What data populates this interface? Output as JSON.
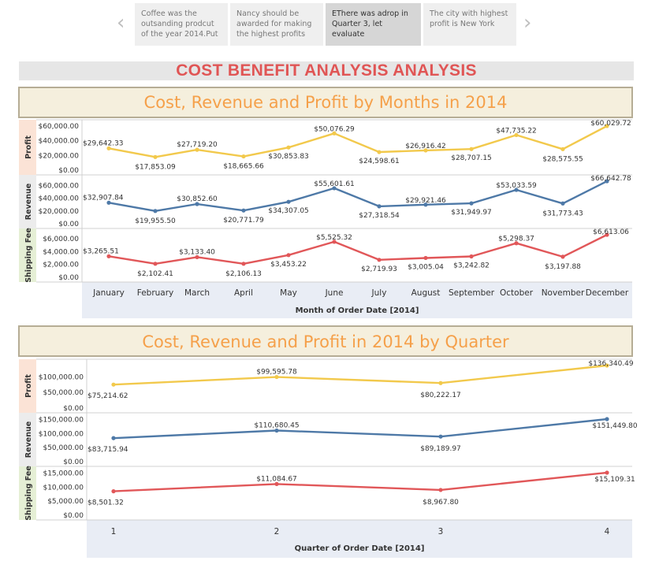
{
  "story": {
    "points": [
      "Coffee was the outsanding prodcut of the year 2014.Put",
      "Nancy should be awarded for making the highest profits",
      "EThere was adrop in Quarter 3, let evaluate",
      "The city with highest profit is New York"
    ],
    "active_index": 2,
    "prev_icon": "chevron-left-icon",
    "next_icon": "chevron-right-icon"
  },
  "main_title": "COST BENEFIT ANALYSIS ANALYSIS",
  "colors": {
    "title_red": "#e05555",
    "chart_title_orange": "#f5a04a",
    "profit": "#f2c94c",
    "revenue": "#4e79a7",
    "shipping": "#e15759",
    "profit_band": "#fbe3d6",
    "revenue_band": "#ececec",
    "shipping_band": "#e5efd5",
    "axis_band": "#e9edf5"
  },
  "chart_data": [
    {
      "type": "line",
      "title": "Cost, Revenue and Profit by Months in 2014",
      "xlabel": "Month of Order Date [2014]",
      "categories": [
        "January",
        "February",
        "March",
        "April",
        "May",
        "June",
        "July",
        "August",
        "September",
        "October",
        "November",
        "December"
      ],
      "series": [
        {
          "name": "Profit",
          "values": [
            29642.33,
            17853.09,
            27719.2,
            18665.66,
            30853.83,
            50076.29,
            24598.61,
            26916.42,
            28707.15,
            47735.22,
            28575.55,
            60029.72
          ],
          "labels": [
            "$29,642.33",
            "$17,853.09",
            "$27,719.20",
            "$18,665.66",
            "$30,853.83",
            "$50,076.29",
            "$24,598.61",
            "$26,916.42",
            "$28,707.15",
            "$47,735.22",
            "$28,575.55",
            "$60,029.72"
          ],
          "ylim": [
            0,
            60000
          ],
          "ticks": [
            "$60,000.00",
            "$40,000.00",
            "$20,000.00",
            "$0.00"
          ],
          "tick_values": [
            60000,
            40000,
            20000,
            0
          ]
        },
        {
          "name": "Revenue",
          "values": [
            32907.84,
            19955.5,
            30852.6,
            20771.79,
            34307.05,
            55601.61,
            27318.54,
            29921.46,
            31949.97,
            53033.59,
            31773.43,
            66642.78
          ],
          "labels": [
            "$32,907.84",
            "$19,955.50",
            "$30,852.60",
            "$20,771.79",
            "$34,307.05",
            "$55,601.61",
            "$27,318.54",
            "$29,921.46",
            "$31,949.97",
            "$53,033.59",
            "$31,773.43",
            "$66,642.78"
          ],
          "ylim": [
            0,
            66642.78
          ],
          "ticks": [
            "$60,000.00",
            "$40,000.00",
            "$20,000.00",
            "$0.00"
          ],
          "tick_values": [
            60000,
            40000,
            20000,
            0
          ]
        },
        {
          "name": "Shipping Fee",
          "values": [
            3265.51,
            2102.41,
            3133.4,
            2106.13,
            3453.22,
            5525.32,
            2719.93,
            3005.04,
            3242.82,
            5298.37,
            3197.88,
            6613.06
          ],
          "labels": [
            "$3,265.51",
            "$2,102.41",
            "$3,133.40",
            "$2,106.13",
            "$3,453.22",
            "$5,525.32",
            "$2,719.93",
            "$3,005.04",
            "$3,242.82",
            "$5,298.37",
            "$3,197.88",
            "$6,613.06"
          ],
          "ylim": [
            0,
            6613.06
          ],
          "ticks": [
            "$6,000.00",
            "$4,000.00",
            "$2,000.00",
            "$0.00"
          ],
          "tick_values": [
            6000,
            4000,
            2000,
            0
          ]
        }
      ]
    },
    {
      "type": "line",
      "title": "Cost, Revenue and Profit in 2014 by Quarter",
      "xlabel": "Quarter of Order Date [2014]",
      "categories": [
        "1",
        "2",
        "3",
        "4"
      ],
      "series": [
        {
          "name": "Profit",
          "values": [
            75214.62,
            99595.78,
            80222.17,
            136340.49
          ],
          "labels": [
            "$75,214.62",
            "$99,595.78",
            "$80,222.17",
            "$136,340.49"
          ],
          "ylim": [
            0,
            136340.49
          ],
          "ticks": [
            "$100,000.00",
            "$50,000.00",
            "$0.00"
          ],
          "tick_values": [
            100000,
            50000,
            0
          ]
        },
        {
          "name": "Revenue",
          "values": [
            83715.94,
            110680.45,
            89189.97,
            151449.8
          ],
          "labels": [
            "$83,715.94",
            "$110,680.45",
            "$89,189.97",
            "$151,449.80"
          ],
          "ylim": [
            0,
            151449.8
          ],
          "ticks": [
            "$150,000.00",
            "$100,000.00",
            "$50,000.00",
            "$0.00"
          ],
          "tick_values": [
            150000,
            100000,
            50000,
            0
          ]
        },
        {
          "name": "Shipping Fee",
          "values": [
            8501.32,
            11084.67,
            8967.8,
            15109.31
          ],
          "labels": [
            "$8,501.32",
            "$11,084.67",
            "$8,967.80",
            "$15,109.31"
          ],
          "ylim": [
            0,
            15109.31
          ],
          "ticks": [
            "$15,000.00",
            "$10,000.00",
            "$5,000.00",
            "$0.00"
          ],
          "tick_values": [
            15000,
            10000,
            5000,
            0
          ]
        }
      ]
    }
  ]
}
